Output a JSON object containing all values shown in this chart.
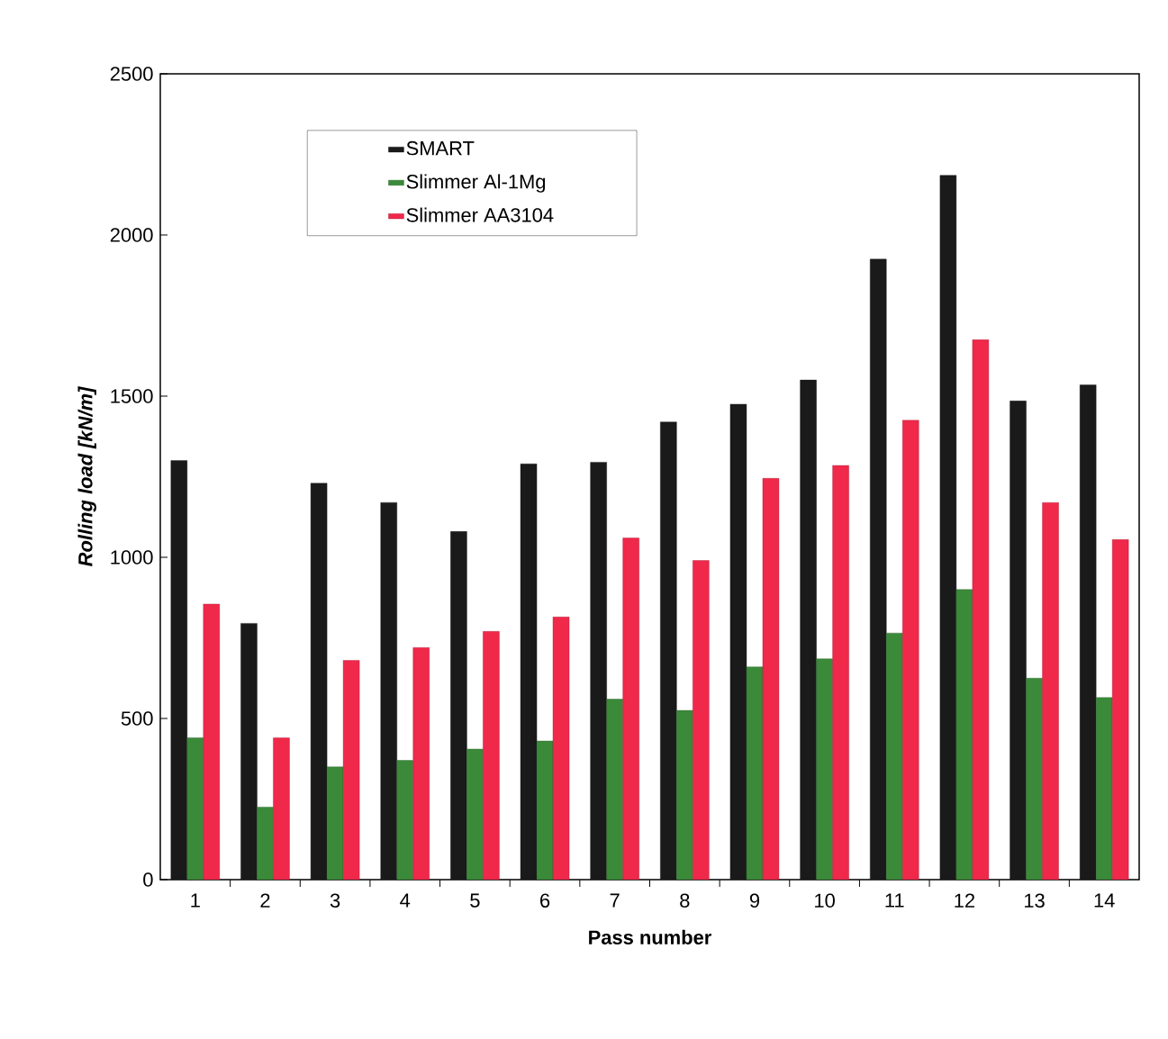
{
  "chart_data": {
    "type": "bar",
    "xlabel": "Pass number",
    "ylabel": "Rolling load [kN/m]",
    "categories": [
      "1",
      "2",
      "3",
      "4",
      "5",
      "6",
      "7",
      "8",
      "9",
      "10",
      "11",
      "12",
      "13",
      "14"
    ],
    "series": [
      {
        "name": "SMART",
        "color": "#1a1a1a",
        "values": [
          1300,
          795,
          1230,
          1170,
          1080,
          1290,
          1295,
          1420,
          1475,
          1550,
          1925,
          2185,
          1485,
          1535
        ]
      },
      {
        "name": "Slimmer Al-1Mg",
        "color": "#3a8a3a",
        "values": [
          440,
          225,
          350,
          370,
          405,
          430,
          560,
          525,
          660,
          685,
          765,
          900,
          625,
          565
        ]
      },
      {
        "name": "Slimmer AA3104",
        "color": "#f0284a",
        "values": [
          855,
          440,
          680,
          720,
          770,
          815,
          1060,
          990,
          1245,
          1285,
          1425,
          1675,
          1170,
          1055
        ]
      }
    ],
    "ylim": [
      0,
      2500
    ],
    "yticks": [
      0,
      500,
      1000,
      1500,
      2000,
      2500
    ],
    "legend": "top left",
    "grid": false
  }
}
